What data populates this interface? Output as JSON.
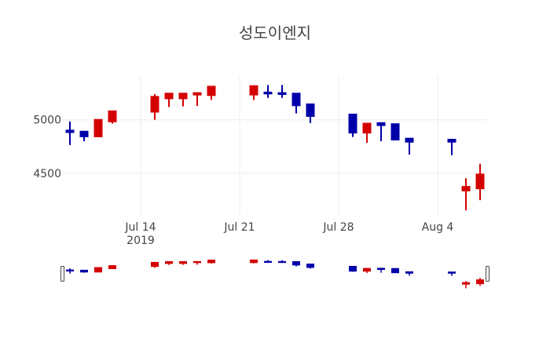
{
  "chart_data": {
    "type": "candlestick",
    "title": "성도이엔지",
    "xlabel": "",
    "ylabel": "",
    "xlim": [
      "2019-07-08T12:00:00Z",
      "2019-08-07T12:00:00Z"
    ],
    "ylim": [
      4105,
      5408
    ],
    "grid": true,
    "legend": false,
    "rangeslider": true,
    "increasing_color": "#d40000",
    "decreasing_color": "#0000aa",
    "y_ticks": [
      {
        "value": 5000,
        "label": "5000"
      },
      {
        "value": 4500,
        "label": "4500"
      }
    ],
    "x_ticks": [
      {
        "date": "2019-07-14",
        "label": "Jul 14",
        "sublabel": "2019"
      },
      {
        "date": "2019-07-21",
        "label": "Jul 21",
        "sublabel": ""
      },
      {
        "date": "2019-07-28",
        "label": "Jul 28",
        "sublabel": ""
      },
      {
        "date": "2019-08-04",
        "label": "Aug 4",
        "sublabel": ""
      }
    ],
    "x": [
      "2019-07-09",
      "2019-07-10",
      "2019-07-11",
      "2019-07-12",
      "2019-07-15",
      "2019-07-16",
      "2019-07-17",
      "2019-07-18",
      "2019-07-19",
      "2019-07-22",
      "2019-07-23",
      "2019-07-24",
      "2019-07-25",
      "2019-07-26",
      "2019-07-29",
      "2019-07-30",
      "2019-07-31",
      "2019-08-01",
      "2019-08-02",
      "2019-08-05",
      "2019-08-06",
      "2019-08-07"
    ],
    "open": [
      4900,
      4890,
      4845,
      4985,
      5075,
      5200,
      5200,
      5235,
      5230,
      5235,
      5255,
      5250,
      5245,
      5145,
      5050,
      4880,
      4970,
      4960,
      4825,
      4815,
      4340,
      4360
    ],
    "high": [
      4985,
      4890,
      5000,
      5080,
      5240,
      5245,
      5245,
      5250,
      5310,
      5315,
      5325,
      5325,
      5245,
      5145,
      5050,
      4965,
      4970,
      4960,
      4825,
      4815,
      4455,
      4590
    ],
    "low": [
      4765,
      4800,
      4845,
      4965,
      5000,
      5120,
      5125,
      5130,
      5185,
      5185,
      5205,
      5205,
      5060,
      4970,
      4840,
      4785,
      4800,
      4815,
      4675,
      4670,
      4155,
      4250
    ],
    "close": [
      4885,
      4845,
      5000,
      5080,
      5215,
      5245,
      5245,
      5250,
      5310,
      5315,
      5245,
      5240,
      5135,
      5035,
      4880,
      4965,
      4950,
      4815,
      4795,
      4795,
      4375,
      4490
    ]
  }
}
